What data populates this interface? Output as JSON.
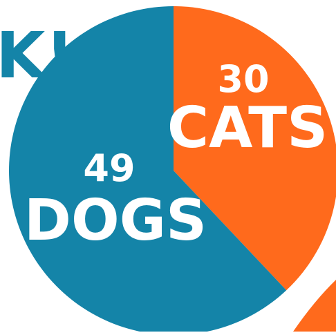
{
  "chart_data": {
    "type": "pie",
    "categories": [
      "CATS",
      "DOGS"
    ],
    "values": [
      30,
      49
    ],
    "colors": [
      "#ff6a1c",
      "#1484a8"
    ],
    "start_angle_deg": 0,
    "direction": "clockwise",
    "title": "",
    "partial_text": "K!"
  }
}
